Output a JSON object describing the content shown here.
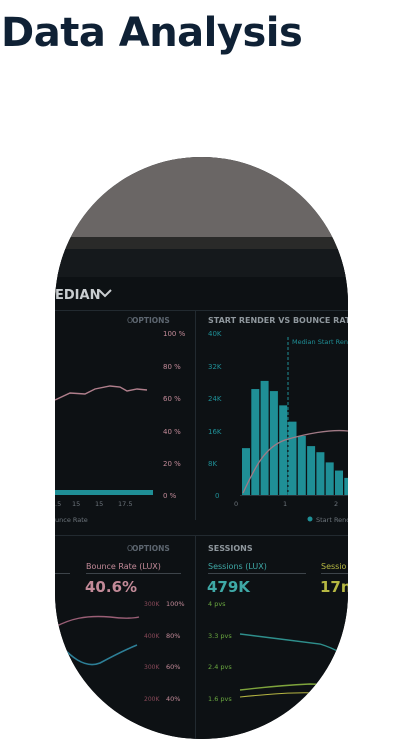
{
  "header": {
    "title": "Data Analysis"
  },
  "photo": {
    "panel_top_label": "EDIAN",
    "options_1": "OPTIONS",
    "left_y_ticks": [
      "100 %",
      "80 %",
      "60 %",
      "40 %",
      "20 %",
      "0 %"
    ],
    "left_x_ticks": [
      "15",
      "15",
      "17.5"
    ],
    "left_x_left": ".5",
    "left_legend": "unce Rate",
    "chart2_title": "START RENDER VS BOUNCE RATE",
    "chart2_y_ticks": [
      "40K",
      "32K",
      "24K",
      "16K",
      "8K",
      "0"
    ],
    "chart2_x_ticks": [
      "0",
      "1",
      "2"
    ],
    "median_label": "Median Start Ren",
    "chart2_legend": "Start Rende",
    "options_2": "OPTIONS",
    "sessions_header": "SESSIONS",
    "bounce_label": "Bounce Rate (LUX)",
    "bounce_value": "40.6%",
    "sessions_label": "Sessions (LUX)",
    "sessions_value": "479K",
    "sessions_label2": "Sessio",
    "sessions_value2": "17n",
    "bottom_y_ticks": [
      "300K",
      "400K",
      "300K",
      "200K"
    ],
    "bottom_pct_ticks": [
      "100%",
      "80%",
      "60%",
      "40%"
    ],
    "pvs_ticks": [
      "4 pvs",
      "3.3 pvs",
      "2.4 pvs",
      "1.6 pvs"
    ],
    "bars": [
      11500,
      26000,
      28000,
      25500,
      22000,
      18000,
      14500,
      12000,
      10500,
      8000,
      6000,
      4200
    ],
    "colors": {
      "teal": "#1f8f96",
      "accent": "#c28a98",
      "title": "#0f2135"
    }
  }
}
